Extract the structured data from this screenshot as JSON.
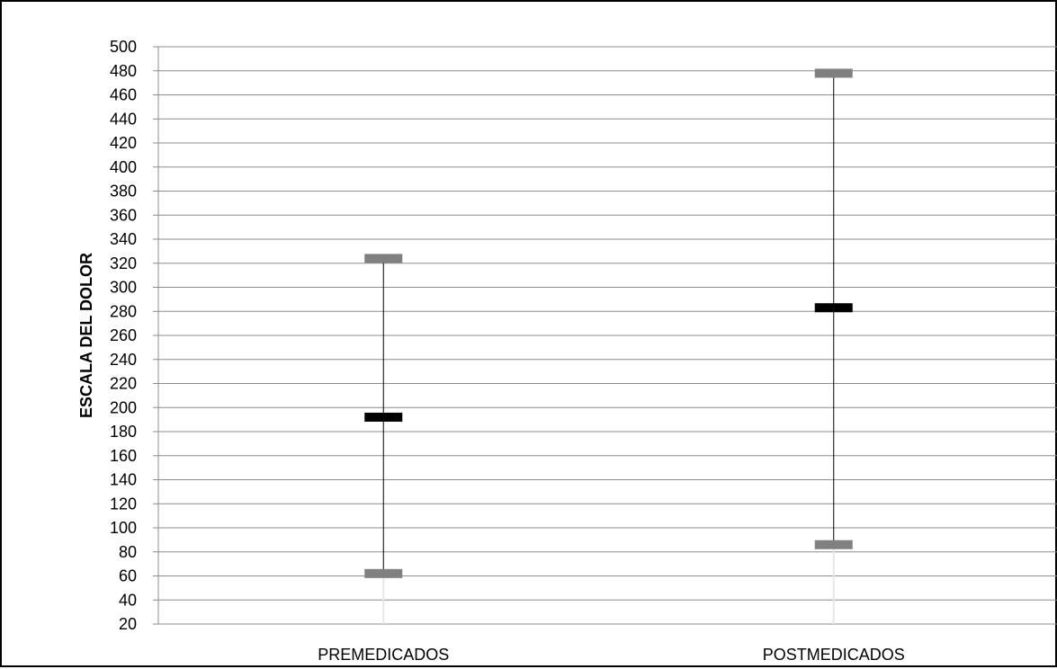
{
  "chart_data": {
    "type": "high-low",
    "ylabel": "ESCALA DEL DOLOR",
    "xlabel": "",
    "ylim": [
      20,
      500
    ],
    "yticks": [
      20,
      40,
      60,
      80,
      100,
      120,
      140,
      160,
      180,
      200,
      220,
      240,
      260,
      280,
      300,
      320,
      340,
      360,
      380,
      400,
      420,
      440,
      460,
      480,
      500
    ],
    "grid": true,
    "legend": "none",
    "categories": [
      "PREMEDICADOS",
      "POSTMEDICADOS"
    ],
    "series": [
      {
        "name": "",
        "role": "high",
        "values": [
          324,
          478
        ],
        "color": "#808080"
      },
      {
        "name": "",
        "role": "mid",
        "values": [
          192,
          283
        ],
        "color": "#000000"
      },
      {
        "name": "",
        "role": "low",
        "values": [
          62,
          86
        ],
        "color": "#808080"
      }
    ]
  }
}
